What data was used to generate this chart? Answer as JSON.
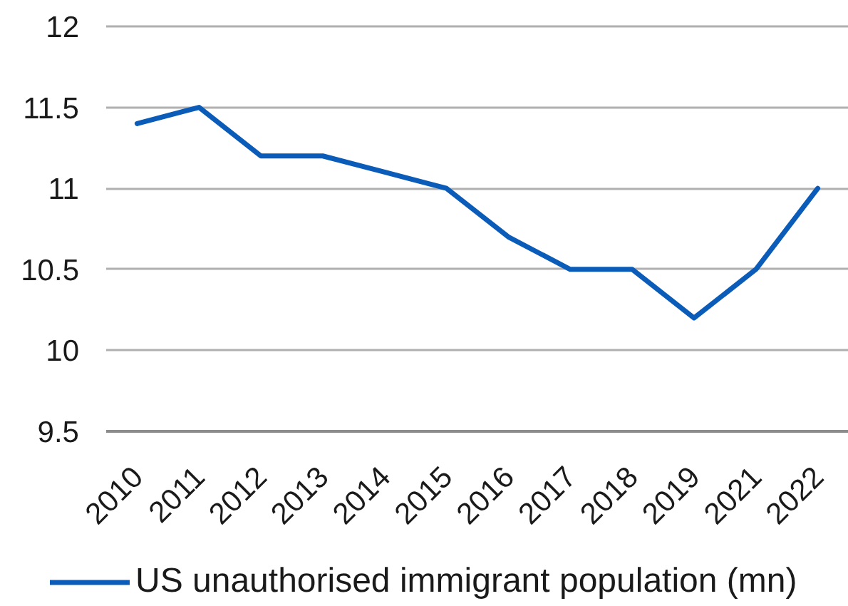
{
  "chart_data": {
    "type": "line",
    "categories": [
      "2010",
      "2011",
      "2012",
      "2013",
      "2014",
      "2015",
      "2016",
      "2017",
      "2018",
      "2019",
      "2021",
      "2022"
    ],
    "series": [
      {
        "name": "US unauthorised immigrant population (mn)",
        "color": "#0a5cb8",
        "values": [
          11.4,
          11.5,
          11.2,
          11.2,
          11.1,
          11.0,
          10.7,
          10.5,
          10.5,
          10.2,
          10.5,
          11.0
        ]
      }
    ],
    "ylim": [
      9.5,
      12
    ],
    "yticks": [
      9.5,
      10,
      10.5,
      11,
      11.5,
      12
    ],
    "grid": "y",
    "legend": "bottom"
  }
}
